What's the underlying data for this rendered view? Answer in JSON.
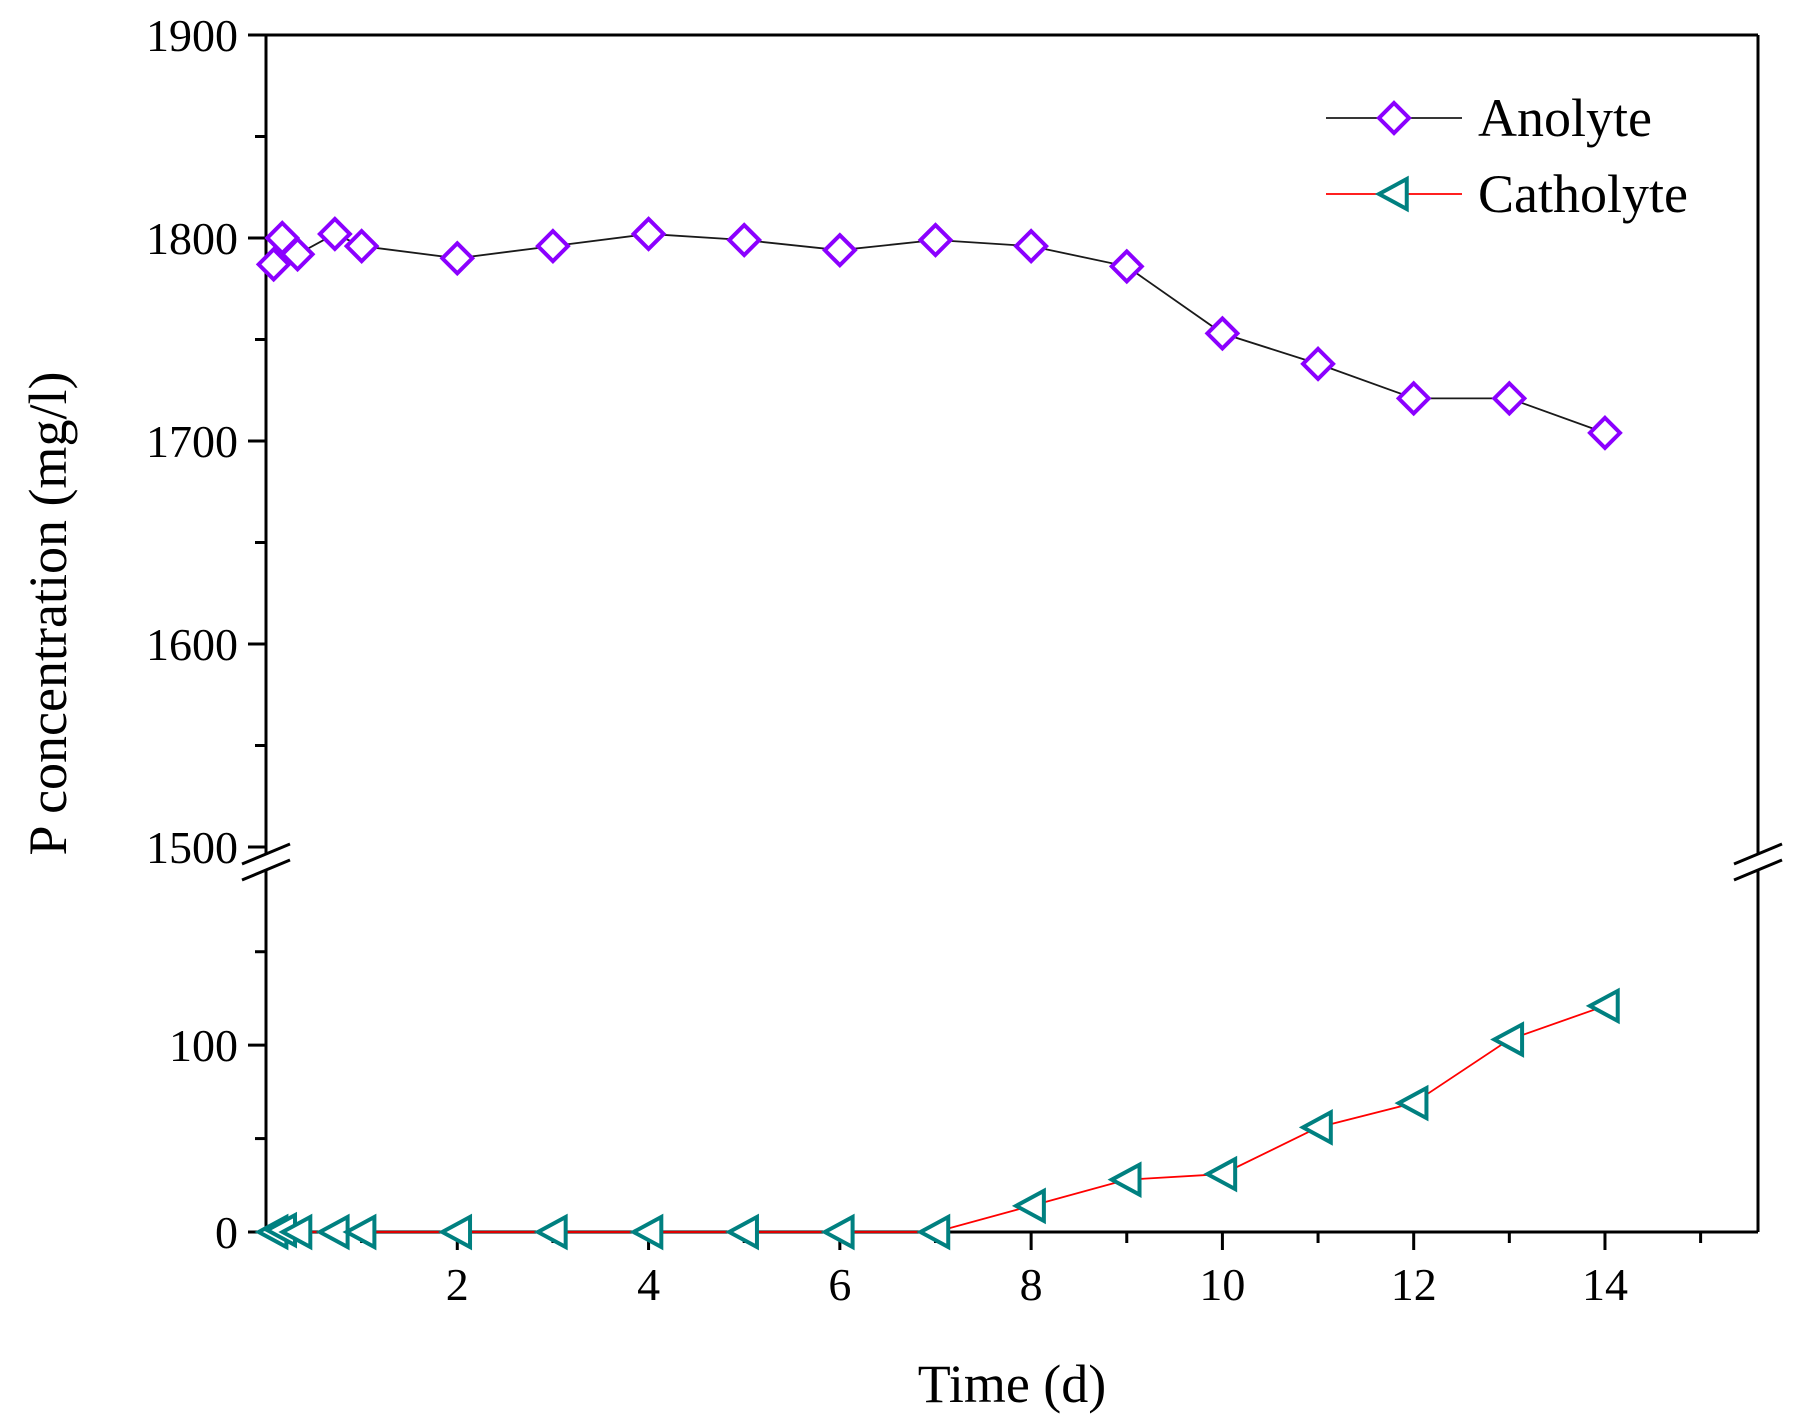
{
  "chart_data": {
    "type": "line",
    "title": "",
    "xlabel": "Time (d)",
    "ylabel": "P concentration (mg/l)",
    "xlim": [
      0,
      15.6
    ],
    "x_ticks": [
      2,
      4,
      6,
      8,
      10,
      12,
      14
    ],
    "y_break": {
      "lower_range": [
        0,
        190
      ],
      "upper_range": [
        1500,
        1900
      ]
    },
    "y_ticks_upper": [
      1500,
      1600,
      1700,
      1800,
      1900
    ],
    "y_ticks_lower": [
      0,
      100
    ],
    "legend_position": "top-right",
    "series": [
      {
        "name": "Anolyte",
        "marker": "diamond",
        "line_color": "#1a1a1a",
        "marker_color": "#8b00ff",
        "segment": "upper",
        "x": [
          0.08,
          0.17,
          0.33,
          0.72,
          1,
          2,
          3,
          4,
          5,
          6,
          7,
          8,
          9,
          10,
          11,
          12,
          13,
          14
        ],
        "values": [
          1787,
          1800,
          1792,
          1802,
          1796,
          1790,
          1796,
          1802,
          1799,
          1794,
          1799,
          1796,
          1786,
          1753,
          1738,
          1721,
          1721,
          1704
        ]
      },
      {
        "name": "Catholyte",
        "marker": "triangle-left",
        "line_color": "#ff0000",
        "marker_color": "#008080",
        "segment": "lower",
        "x": [
          0.08,
          0.17,
          0.33,
          0.72,
          1,
          2,
          3,
          4,
          5,
          6,
          7,
          8,
          9,
          10,
          11,
          12,
          13,
          14
        ],
        "values": [
          0,
          1,
          0,
          0,
          0,
          0,
          0,
          0,
          0,
          0,
          0,
          14,
          28,
          31,
          56,
          69,
          103,
          121
        ]
      }
    ]
  }
}
